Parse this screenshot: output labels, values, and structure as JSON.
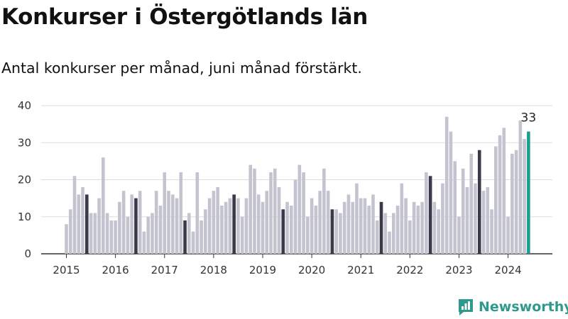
{
  "title": "Konkurser i Östergötlands län",
  "subtitle": "Antal konkurser per månad, juni månad förstärkt.",
  "brand": "Newsworthy",
  "colors": {
    "bar": "#c4c4d0",
    "june": "#3a3a4a",
    "latest": "#1a9e8f",
    "grid": "#dddddd",
    "brand": "#2f9a8c"
  },
  "chart_data": {
    "type": "bar",
    "title": "Konkurser i Östergötlands län",
    "subtitle": "Antal konkurser per månad, juni månad förstärkt.",
    "xlabel": "",
    "ylabel": "",
    "ylim": [
      0,
      40
    ],
    "yticks": [
      0,
      10,
      20,
      30,
      40
    ],
    "xtick_labels": [
      "2015",
      "2016",
      "2017",
      "2018",
      "2019",
      "2020",
      "2021",
      "2022",
      "2023",
      "2024"
    ],
    "start": "2015-01",
    "grid": true,
    "highlight": "June bars dark; latest month teal",
    "annotation": "33",
    "values": [
      8,
      12,
      21,
      16,
      18,
      16,
      11,
      11,
      15,
      26,
      11,
      9,
      9,
      14,
      17,
      10,
      16,
      15,
      17,
      6,
      10,
      11,
      17,
      13,
      22,
      17,
      16,
      15,
      22,
      9,
      11,
      6,
      22,
      9,
      12,
      15,
      17,
      18,
      13,
      14,
      15,
      16,
      15,
      10,
      15,
      24,
      23,
      16,
      14,
      17,
      22,
      23,
      18,
      12,
      14,
      13,
      20,
      24,
      22,
      10,
      15,
      13,
      17,
      23,
      17,
      12,
      12,
      11,
      14,
      16,
      14,
      19,
      15,
      15,
      13,
      16,
      9,
      14,
      11,
      6,
      11,
      13,
      19,
      15,
      9,
      14,
      13,
      14,
      22,
      21,
      14,
      12,
      19,
      37,
      33,
      25,
      10,
      23,
      18,
      27,
      19,
      28,
      17,
      18,
      12,
      29,
      32,
      34,
      10,
      27,
      28,
      36,
      31,
      33
    ]
  }
}
